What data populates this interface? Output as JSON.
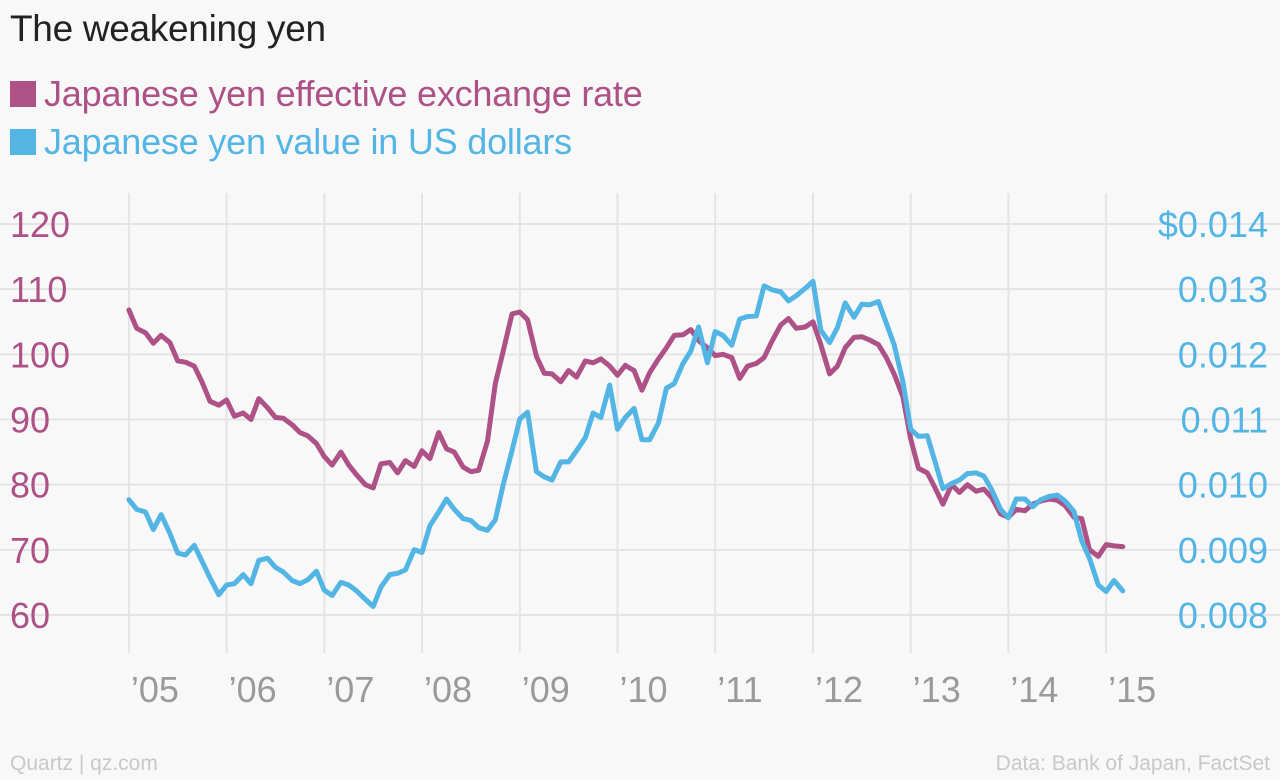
{
  "title": "The weakening yen",
  "chart_data": {
    "type": "line",
    "title": "The weakening yen",
    "colors": {
      "series1": "#ad5187",
      "series2": "#53b5e4",
      "grid": "#e4e4e4",
      "xtick": "#9a9a9a"
    },
    "x_ticks": [
      "’05",
      "’06",
      "’07",
      "’08",
      "’09",
      "’10",
      "’11",
      "’12",
      "’13",
      "’14",
      "’15"
    ],
    "x_tick_years": [
      2005,
      2006,
      2007,
      2008,
      2009,
      2010,
      2011,
      2012,
      2013,
      2014,
      2015
    ],
    "xlim": [
      2004.5,
      2015.5
    ],
    "y_left": {
      "ticks": [
        "120",
        "110",
        "100",
        "90",
        "80",
        "70",
        "60"
      ],
      "tick_values": [
        120,
        110,
        100,
        90,
        80,
        70,
        60
      ],
      "lim": [
        60,
        120
      ]
    },
    "y_right": {
      "ticks": [
        "$0.014",
        "0.013",
        "0.012",
        "0.011",
        "0.010",
        "0.009",
        "0.008"
      ],
      "tick_values": [
        0.014,
        0.013,
        0.012,
        0.011,
        0.01,
        0.009,
        0.008
      ],
      "lim": [
        0.008,
        0.014
      ]
    },
    "series": [
      {
        "name": "Japanese yen effective exchange rate",
        "axis": "left",
        "points": [
          [
            2005.0,
            106.8
          ],
          [
            2005.08,
            104
          ],
          [
            2005.17,
            103.3
          ],
          [
            2005.25,
            101.7
          ],
          [
            2005.33,
            102.9
          ],
          [
            2005.42,
            101.8
          ],
          [
            2005.5,
            99
          ],
          [
            2005.58,
            98.8
          ],
          [
            2005.67,
            98.2
          ],
          [
            2005.75,
            95.7
          ],
          [
            2005.83,
            92.8
          ],
          [
            2005.92,
            92.2
          ],
          [
            2006.0,
            93
          ],
          [
            2006.08,
            90.5
          ],
          [
            2006.17,
            91
          ],
          [
            2006.25,
            90
          ],
          [
            2006.33,
            93.2
          ],
          [
            2006.42,
            91.8
          ],
          [
            2006.5,
            90.3
          ],
          [
            2006.58,
            90.2
          ],
          [
            2006.67,
            89.2
          ],
          [
            2006.75,
            88
          ],
          [
            2006.83,
            87.5
          ],
          [
            2006.92,
            86.3
          ],
          [
            2007.0,
            84.3
          ],
          [
            2007.08,
            83
          ],
          [
            2007.17,
            85
          ],
          [
            2007.25,
            83
          ],
          [
            2007.33,
            81.5
          ],
          [
            2007.42,
            80
          ],
          [
            2007.5,
            79.5
          ],
          [
            2007.58,
            83.2
          ],
          [
            2007.67,
            83.4
          ],
          [
            2007.75,
            81.8
          ],
          [
            2007.83,
            83.7
          ],
          [
            2007.92,
            82.8
          ],
          [
            2008.0,
            85.2
          ],
          [
            2008.08,
            84
          ],
          [
            2008.17,
            88
          ],
          [
            2008.25,
            85.5
          ],
          [
            2008.33,
            85
          ],
          [
            2008.42,
            82.7
          ],
          [
            2008.5,
            82
          ],
          [
            2008.58,
            82.2
          ],
          [
            2008.67,
            86.7
          ],
          [
            2008.75,
            95.5
          ],
          [
            2008.83,
            100.5
          ],
          [
            2008.92,
            106.2
          ],
          [
            2009.0,
            106.5
          ],
          [
            2009.08,
            105.3
          ],
          [
            2009.17,
            99.7
          ],
          [
            2009.25,
            97.1
          ],
          [
            2009.33,
            97
          ],
          [
            2009.42,
            95.8
          ],
          [
            2009.5,
            97.5
          ],
          [
            2009.58,
            96.5
          ],
          [
            2009.67,
            99
          ],
          [
            2009.75,
            98.7
          ],
          [
            2009.83,
            99.3
          ],
          [
            2009.92,
            98.2
          ],
          [
            2010.0,
            96.8
          ],
          [
            2010.08,
            98.3
          ],
          [
            2010.17,
            97.5
          ],
          [
            2010.25,
            94.5
          ],
          [
            2010.33,
            97.2
          ],
          [
            2010.42,
            99.3
          ],
          [
            2010.5,
            101
          ],
          [
            2010.58,
            102.9
          ],
          [
            2010.67,
            103
          ],
          [
            2010.75,
            103.8
          ],
          [
            2010.83,
            102.1
          ],
          [
            2010.92,
            101
          ],
          [
            2011.0,
            99.8
          ],
          [
            2011.08,
            100
          ],
          [
            2011.17,
            99.5
          ],
          [
            2011.25,
            96.3
          ],
          [
            2011.33,
            98.2
          ],
          [
            2011.42,
            98.6
          ],
          [
            2011.5,
            99.5
          ],
          [
            2011.58,
            102
          ],
          [
            2011.67,
            104.5
          ],
          [
            2011.75,
            105.5
          ],
          [
            2011.83,
            104
          ],
          [
            2011.92,
            104.2
          ],
          [
            2012.0,
            105
          ],
          [
            2012.08,
            101.5
          ],
          [
            2012.17,
            97
          ],
          [
            2012.25,
            98.2
          ],
          [
            2012.33,
            101
          ],
          [
            2012.42,
            102.6
          ],
          [
            2012.5,
            102.7
          ],
          [
            2012.58,
            102.2
          ],
          [
            2012.67,
            101.5
          ],
          [
            2012.75,
            99.5
          ],
          [
            2012.83,
            97
          ],
          [
            2012.92,
            93.5
          ],
          [
            2013.0,
            87
          ],
          [
            2013.08,
            82.5
          ],
          [
            2013.17,
            81.8
          ],
          [
            2013.25,
            79.5
          ],
          [
            2013.33,
            77
          ],
          [
            2013.42,
            80
          ],
          [
            2013.5,
            78.8
          ],
          [
            2013.58,
            80
          ],
          [
            2013.67,
            79
          ],
          [
            2013.75,
            79.3
          ],
          [
            2013.83,
            78
          ],
          [
            2013.92,
            75.5
          ],
          [
            2014.0,
            75
          ],
          [
            2014.08,
            76.2
          ],
          [
            2014.17,
            76
          ],
          [
            2014.25,
            77
          ],
          [
            2014.33,
            77.5
          ],
          [
            2014.42,
            77.8
          ],
          [
            2014.5,
            77.6
          ],
          [
            2014.58,
            76.8
          ],
          [
            2014.67,
            75
          ],
          [
            2014.75,
            74.8
          ],
          [
            2014.83,
            70
          ],
          [
            2014.92,
            69
          ],
          [
            2015.0,
            70.8
          ],
          [
            2015.08,
            70.6
          ],
          [
            2015.17,
            70.5
          ]
        ]
      },
      {
        "name": "Japanese yen value in US dollars",
        "axis": "right",
        "points": [
          [
            2005.0,
            0.00977
          ],
          [
            2005.08,
            0.00962
          ],
          [
            2005.17,
            0.00958
          ],
          [
            2005.25,
            0.00931
          ],
          [
            2005.33,
            0.00954
          ],
          [
            2005.42,
            0.00925
          ],
          [
            2005.5,
            0.00895
          ],
          [
            2005.58,
            0.00892
          ],
          [
            2005.67,
            0.00907
          ],
          [
            2005.75,
            0.00882
          ],
          [
            2005.83,
            0.00857
          ],
          [
            2005.92,
            0.00831
          ],
          [
            2006.0,
            0.00846
          ],
          [
            2006.08,
            0.00848
          ],
          [
            2006.17,
            0.00862
          ],
          [
            2006.25,
            0.00848
          ],
          [
            2006.33,
            0.00884
          ],
          [
            2006.42,
            0.00887
          ],
          [
            2006.5,
            0.00873
          ],
          [
            2006.58,
            0.00866
          ],
          [
            2006.67,
            0.00853
          ],
          [
            2006.75,
            0.00848
          ],
          [
            2006.83,
            0.00854
          ],
          [
            2006.92,
            0.00867
          ],
          [
            2007.0,
            0.00838
          ],
          [
            2007.08,
            0.0083
          ],
          [
            2007.17,
            0.0085
          ],
          [
            2007.25,
            0.00846
          ],
          [
            2007.33,
            0.00837
          ],
          [
            2007.42,
            0.00824
          ],
          [
            2007.5,
            0.00813
          ],
          [
            2007.58,
            0.00843
          ],
          [
            2007.67,
            0.00862
          ],
          [
            2007.75,
            0.00864
          ],
          [
            2007.83,
            0.00869
          ],
          [
            2007.92,
            0.009
          ],
          [
            2008.0,
            0.00896
          ],
          [
            2008.08,
            0.00937
          ],
          [
            2008.17,
            0.00958
          ],
          [
            2008.25,
            0.00978
          ],
          [
            2008.33,
            0.00962
          ],
          [
            2008.42,
            0.00948
          ],
          [
            2008.5,
            0.00945
          ],
          [
            2008.58,
            0.00934
          ],
          [
            2008.67,
            0.0093
          ],
          [
            2008.75,
            0.00946
          ],
          [
            2008.83,
            0.01
          ],
          [
            2008.92,
            0.01052
          ],
          [
            2009.0,
            0.01101
          ],
          [
            2009.08,
            0.01111
          ],
          [
            2009.17,
            0.0102
          ],
          [
            2009.25,
            0.01012
          ],
          [
            2009.33,
            0.01007
          ],
          [
            2009.42,
            0.01035
          ],
          [
            2009.5,
            0.01035
          ],
          [
            2009.58,
            0.01052
          ],
          [
            2009.67,
            0.01072
          ],
          [
            2009.75,
            0.0111
          ],
          [
            2009.83,
            0.01103
          ],
          [
            2009.92,
            0.01153
          ],
          [
            2010.0,
            0.01085
          ],
          [
            2010.08,
            0.01103
          ],
          [
            2010.17,
            0.01117
          ],
          [
            2010.25,
            0.01069
          ],
          [
            2010.33,
            0.01069
          ],
          [
            2010.42,
            0.01095
          ],
          [
            2010.5,
            0.01148
          ],
          [
            2010.58,
            0.01155
          ],
          [
            2010.67,
            0.01186
          ],
          [
            2010.75,
            0.01205
          ],
          [
            2010.83,
            0.01242
          ],
          [
            2010.92,
            0.01187
          ],
          [
            2011.0,
            0.01235
          ],
          [
            2011.08,
            0.01229
          ],
          [
            2011.17,
            0.01214
          ],
          [
            2011.25,
            0.01254
          ],
          [
            2011.33,
            0.01258
          ],
          [
            2011.42,
            0.01259
          ],
          [
            2011.5,
            0.01305
          ],
          [
            2011.58,
            0.01299
          ],
          [
            2011.67,
            0.01296
          ],
          [
            2011.75,
            0.01282
          ],
          [
            2011.83,
            0.0129
          ],
          [
            2011.92,
            0.01301
          ],
          [
            2012.0,
            0.01312
          ],
          [
            2012.08,
            0.01237
          ],
          [
            2012.17,
            0.01218
          ],
          [
            2012.25,
            0.01241
          ],
          [
            2012.33,
            0.01279
          ],
          [
            2012.42,
            0.01257
          ],
          [
            2012.5,
            0.01277
          ],
          [
            2012.58,
            0.01276
          ],
          [
            2012.67,
            0.01281
          ],
          [
            2012.75,
            0.01248
          ],
          [
            2012.83,
            0.01215
          ],
          [
            2012.92,
            0.01158
          ],
          [
            2013.0,
            0.01085
          ],
          [
            2013.08,
            0.01074
          ],
          [
            2013.17,
            0.01075
          ],
          [
            2013.25,
            0.01035
          ],
          [
            2013.33,
            0.00994
          ],
          [
            2013.42,
            0.01002
          ],
          [
            2013.5,
            0.01007
          ],
          [
            2013.58,
            0.01017
          ],
          [
            2013.67,
            0.01018
          ],
          [
            2013.75,
            0.01013
          ],
          [
            2013.83,
            0.00992
          ],
          [
            2013.92,
            0.00962
          ],
          [
            2014.0,
            0.00949
          ],
          [
            2014.08,
            0.00978
          ],
          [
            2014.17,
            0.00978
          ],
          [
            2014.25,
            0.00966
          ],
          [
            2014.33,
            0.00977
          ],
          [
            2014.42,
            0.00982
          ],
          [
            2014.5,
            0.00984
          ],
          [
            2014.58,
            0.00975
          ],
          [
            2014.67,
            0.00959
          ],
          [
            2014.75,
            0.00914
          ],
          [
            2014.83,
            0.00887
          ],
          [
            2014.92,
            0.00846
          ],
          [
            2015.0,
            0.00836
          ],
          [
            2015.08,
            0.00853
          ],
          [
            2015.17,
            0.00837
          ]
        ]
      }
    ],
    "grid": true
  },
  "footer": {
    "source_left": "Quartz | qz.com",
    "source_right": "Data: Bank of Japan, FactSet"
  }
}
